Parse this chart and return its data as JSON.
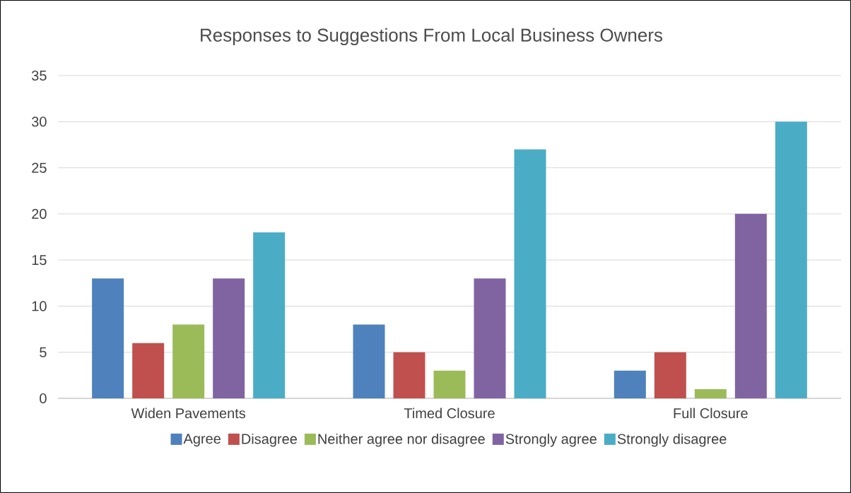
{
  "chart_data": {
    "type": "bar",
    "title": "Responses to Suggestions From Local Business Owners",
    "categories": [
      "Widen Pavements",
      "Timed Closure",
      "Full Closure"
    ],
    "series": [
      {
        "name": "Agree",
        "color": "#4f81bd",
        "values": [
          13,
          8,
          3
        ]
      },
      {
        "name": "Disagree",
        "color": "#c0504d",
        "values": [
          6,
          5,
          5
        ]
      },
      {
        "name": "Neither agree nor disagree",
        "color": "#9bbb59",
        "values": [
          8,
          3,
          1
        ]
      },
      {
        "name": "Strongly agree",
        "color": "#8064a2",
        "values": [
          13,
          13,
          20
        ]
      },
      {
        "name": "Strongly disagree",
        "color": "#4bacc6",
        "values": [
          18,
          27,
          30
        ]
      }
    ],
    "ylim": [
      0,
      35
    ],
    "yticks": [
      0,
      5,
      10,
      15,
      20,
      25,
      30,
      35
    ],
    "grid": "y",
    "legend": "bottom"
  }
}
